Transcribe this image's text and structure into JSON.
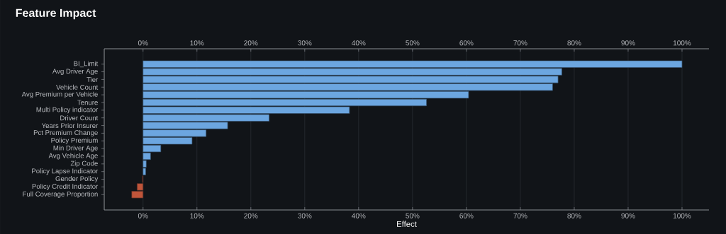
{
  "chart_data": {
    "type": "bar",
    "orientation": "horizontal",
    "title": "Feature Impact",
    "xlabel": "Effect",
    "categories": [
      "BI_Limit",
      "Avg Driver Age",
      "Tier",
      "Vehicle Count",
      "Avg Premium per Vehicle",
      "Tenure",
      "Multi Policy indicator",
      "Driver Count",
      "Years Prior Insurer",
      "Pct Premium Change",
      "Policy Premium",
      "Min Driver Age",
      "Avg Vehicle Age",
      "Zip Code",
      "Policy Lapse Indicator",
      "Gender Policy",
      "Policy Credit Indicator",
      "Full Coverage Proportion"
    ],
    "values": [
      100,
      77.7,
      77.0,
      76.0,
      60.4,
      52.6,
      38.3,
      23.4,
      15.7,
      11.7,
      9.1,
      3.3,
      1.4,
      0.6,
      0.5,
      -0.1,
      -1.1,
      -2.1
    ],
    "colors": [
      "#6ca6e0",
      "#6ca6e0",
      "#6ca6e0",
      "#6ca6e0",
      "#6ca6e0",
      "#6ca6e0",
      "#6ca6e0",
      "#6ca6e0",
      "#6ca6e0",
      "#6ca6e0",
      "#6ca6e0",
      "#6ca6e0",
      "#6ca6e0",
      "#6ca6e0",
      "#6ca6e0",
      "#c0553a",
      "#c0553a",
      "#c0553a"
    ],
    "xlim": [
      -7.2,
      105
    ],
    "xticks": [
      {
        "value": 0,
        "label": "0%"
      },
      {
        "value": 10,
        "label": "10%"
      },
      {
        "value": 20,
        "label": "20%"
      },
      {
        "value": 30,
        "label": "30%"
      },
      {
        "value": 40,
        "label": "40%"
      },
      {
        "value": 50,
        "label": "50%"
      },
      {
        "value": 60,
        "label": "60%"
      },
      {
        "value": 70,
        "label": "70%"
      },
      {
        "value": 80,
        "label": "80%"
      },
      {
        "value": 90,
        "label": "90%"
      },
      {
        "value": 100,
        "label": "100%"
      }
    ],
    "x2lim": [
      -7.2,
      105
    ],
    "x2ticks": [
      {
        "value": 0,
        "label": "0%"
      },
      {
        "value": 10,
        "label": "10%"
      },
      {
        "value": 20,
        "label": "20%"
      },
      {
        "value": 30,
        "label": "30%"
      },
      {
        "value": 40,
        "label": "40%"
      },
      {
        "value": 50,
        "label": "50%"
      },
      {
        "value": 60,
        "label": "60%"
      },
      {
        "value": 70,
        "label": "70%"
      },
      {
        "value": 80,
        "label": "80%"
      },
      {
        "value": 90,
        "label": "90%"
      },
      {
        "value": 100,
        "label": "100%"
      }
    ],
    "grid": "x"
  }
}
